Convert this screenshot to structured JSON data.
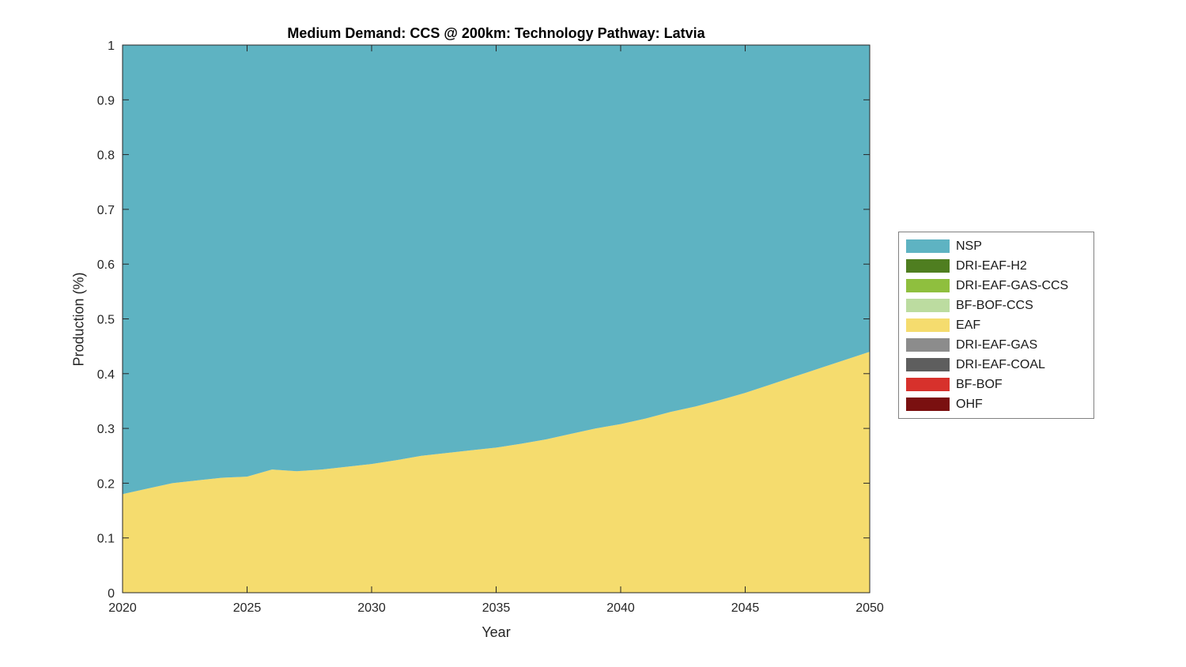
{
  "chart_data": {
    "type": "area",
    "title": "Medium Demand: CCS @ 200km: Technology Pathway: Latvia",
    "xlabel": "Year",
    "ylabel": "Production (%)",
    "xlim": [
      2020,
      2050
    ],
    "ylim": [
      0,
      1
    ],
    "xticks": [
      2020,
      2025,
      2030,
      2035,
      2040,
      2045,
      2050
    ],
    "yticks": [
      0,
      0.1,
      0.2,
      0.3,
      0.4,
      0.5,
      0.6,
      0.7,
      0.8,
      0.9,
      1
    ],
    "grid": false,
    "legend_position": "right-outside",
    "x": [
      2020,
      2021,
      2022,
      2023,
      2024,
      2025,
      2026,
      2027,
      2028,
      2029,
      2030,
      2031,
      2032,
      2033,
      2034,
      2035,
      2036,
      2037,
      2038,
      2039,
      2040,
      2041,
      2042,
      2043,
      2044,
      2045,
      2046,
      2047,
      2048,
      2049,
      2050
    ],
    "series": [
      {
        "name": "NSP",
        "color": "#5EB3C2",
        "values": [
          0.82,
          0.81,
          0.8,
          0.795,
          0.79,
          0.788,
          0.775,
          0.778,
          0.775,
          0.77,
          0.765,
          0.758,
          0.75,
          0.745,
          0.74,
          0.735,
          0.728,
          0.72,
          0.71,
          0.7,
          0.692,
          0.682,
          0.67,
          0.66,
          0.648,
          0.635,
          0.62,
          0.605,
          0.59,
          0.575,
          0.56
        ]
      },
      {
        "name": "DRI-EAF-H2",
        "color": "#4F7E20",
        "values": [
          0,
          0,
          0,
          0,
          0,
          0,
          0,
          0,
          0,
          0,
          0,
          0,
          0,
          0,
          0,
          0,
          0,
          0,
          0,
          0,
          0,
          0,
          0,
          0,
          0,
          0,
          0,
          0,
          0,
          0,
          0
        ]
      },
      {
        "name": "DRI-EAF-GAS-CCS",
        "color": "#8FBF3E",
        "values": [
          0,
          0,
          0,
          0,
          0,
          0,
          0,
          0,
          0,
          0,
          0,
          0,
          0,
          0,
          0,
          0,
          0,
          0,
          0,
          0,
          0,
          0,
          0,
          0,
          0,
          0,
          0,
          0,
          0,
          0,
          0
        ]
      },
      {
        "name": "BF-BOF-CCS",
        "color": "#BCDCA0",
        "values": [
          0,
          0,
          0,
          0,
          0,
          0,
          0,
          0,
          0,
          0,
          0,
          0,
          0,
          0,
          0,
          0,
          0,
          0,
          0,
          0,
          0,
          0,
          0,
          0,
          0,
          0,
          0,
          0,
          0,
          0,
          0
        ]
      },
      {
        "name": "EAF",
        "color": "#F5DC6E",
        "values": [
          0.18,
          0.19,
          0.2,
          0.205,
          0.21,
          0.212,
          0.225,
          0.222,
          0.225,
          0.23,
          0.235,
          0.242,
          0.25,
          0.255,
          0.26,
          0.265,
          0.272,
          0.28,
          0.29,
          0.3,
          0.308,
          0.318,
          0.33,
          0.34,
          0.352,
          0.365,
          0.38,
          0.395,
          0.41,
          0.425,
          0.44
        ]
      },
      {
        "name": "DRI-EAF-GAS",
        "color": "#8C8C8C",
        "values": [
          0,
          0,
          0,
          0,
          0,
          0,
          0,
          0,
          0,
          0,
          0,
          0,
          0,
          0,
          0,
          0,
          0,
          0,
          0,
          0,
          0,
          0,
          0,
          0,
          0,
          0,
          0,
          0,
          0,
          0,
          0
        ]
      },
      {
        "name": "DRI-EAF-COAL",
        "color": "#5E5E5E",
        "values": [
          0,
          0,
          0,
          0,
          0,
          0,
          0,
          0,
          0,
          0,
          0,
          0,
          0,
          0,
          0,
          0,
          0,
          0,
          0,
          0,
          0,
          0,
          0,
          0,
          0,
          0,
          0,
          0,
          0,
          0,
          0
        ]
      },
      {
        "name": "BF-BOF",
        "color": "#D7312C",
        "values": [
          0,
          0,
          0,
          0,
          0,
          0,
          0,
          0,
          0,
          0,
          0,
          0,
          0,
          0,
          0,
          0,
          0,
          0,
          0,
          0,
          0,
          0,
          0,
          0,
          0,
          0,
          0,
          0,
          0,
          0,
          0
        ]
      },
      {
        "name": "OHF",
        "color": "#7A1010",
        "values": [
          0,
          0,
          0,
          0,
          0,
          0,
          0,
          0,
          0,
          0,
          0,
          0,
          0,
          0,
          0,
          0,
          0,
          0,
          0,
          0,
          0,
          0,
          0,
          0,
          0,
          0,
          0,
          0,
          0,
          0,
          0
        ]
      }
    ],
    "stack_order": [
      "OHF",
      "BF-BOF",
      "DRI-EAF-COAL",
      "DRI-EAF-GAS",
      "EAF",
      "BF-BOF-CCS",
      "DRI-EAF-GAS-CCS",
      "DRI-EAF-H2",
      "NSP"
    ]
  }
}
